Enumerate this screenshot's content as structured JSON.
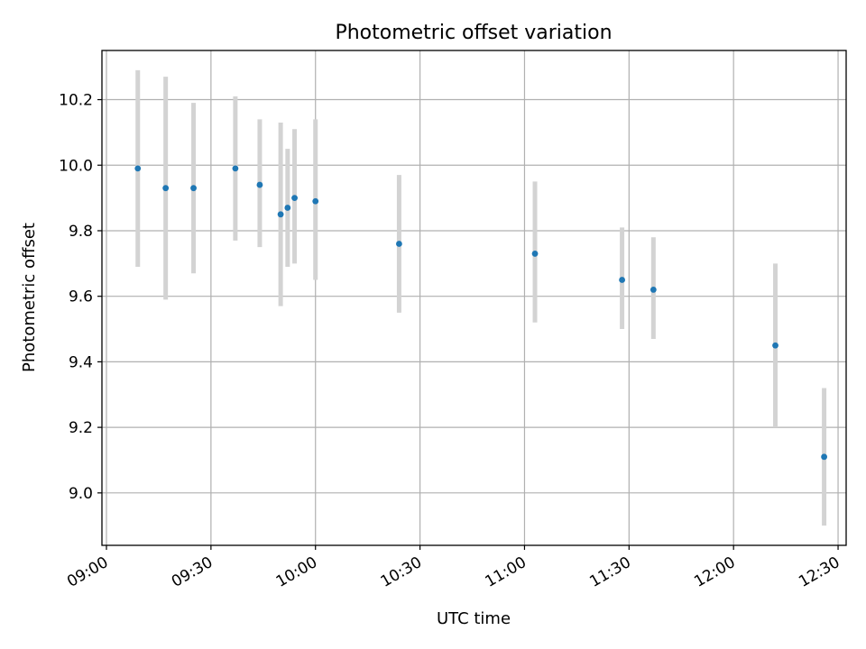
{
  "chart_data": {
    "type": "scatter",
    "title": "Photometric offset variation",
    "xlabel": "UTC time",
    "ylabel": "Photometric offset",
    "x_ticks": [
      "09:00",
      "09:30",
      "10:00",
      "10:30",
      "11:00",
      "11:30",
      "12:00",
      "12:30"
    ],
    "y_ticks": [
      "9.0",
      "9.2",
      "9.4",
      "9.6",
      "9.8",
      "10.0",
      "10.2"
    ],
    "xlim": [
      "09:00",
      "12:32"
    ],
    "ylim": [
      8.84,
      10.35
    ],
    "grid": true,
    "errorbar_color": "#d3d3d3",
    "point_color": "#1f77b4",
    "points": [
      {
        "x": "09:09",
        "y": 9.99,
        "y_low": 9.69,
        "y_high": 10.29
      },
      {
        "x": "09:17",
        "y": 9.93,
        "y_low": 9.59,
        "y_high": 10.27
      },
      {
        "x": "09:25",
        "y": 9.93,
        "y_low": 9.67,
        "y_high": 10.19
      },
      {
        "x": "09:37",
        "y": 9.99,
        "y_low": 9.77,
        "y_high": 10.21
      },
      {
        "x": "09:44",
        "y": 9.94,
        "y_low": 9.75,
        "y_high": 10.14
      },
      {
        "x": "09:50",
        "y": 9.85,
        "y_low": 9.57,
        "y_high": 10.13
      },
      {
        "x": "09:52",
        "y": 9.87,
        "y_low": 9.69,
        "y_high": 10.05
      },
      {
        "x": "09:54",
        "y": 9.9,
        "y_low": 9.7,
        "y_high": 10.11
      },
      {
        "x": "10:00",
        "y": 9.89,
        "y_low": 9.65,
        "y_high": 10.14
      },
      {
        "x": "10:24",
        "y": 9.76,
        "y_low": 9.55,
        "y_high": 9.97
      },
      {
        "x": "11:03",
        "y": 9.73,
        "y_low": 9.52,
        "y_high": 9.95
      },
      {
        "x": "11:28",
        "y": 9.65,
        "y_low": 9.5,
        "y_high": 9.81
      },
      {
        "x": "11:37",
        "y": 9.62,
        "y_low": 9.47,
        "y_high": 9.78
      },
      {
        "x": "12:12",
        "y": 9.45,
        "y_low": 9.2,
        "y_high": 9.7
      },
      {
        "x": "12:26",
        "y": 9.11,
        "y_low": 8.9,
        "y_high": 9.32
      }
    ]
  }
}
